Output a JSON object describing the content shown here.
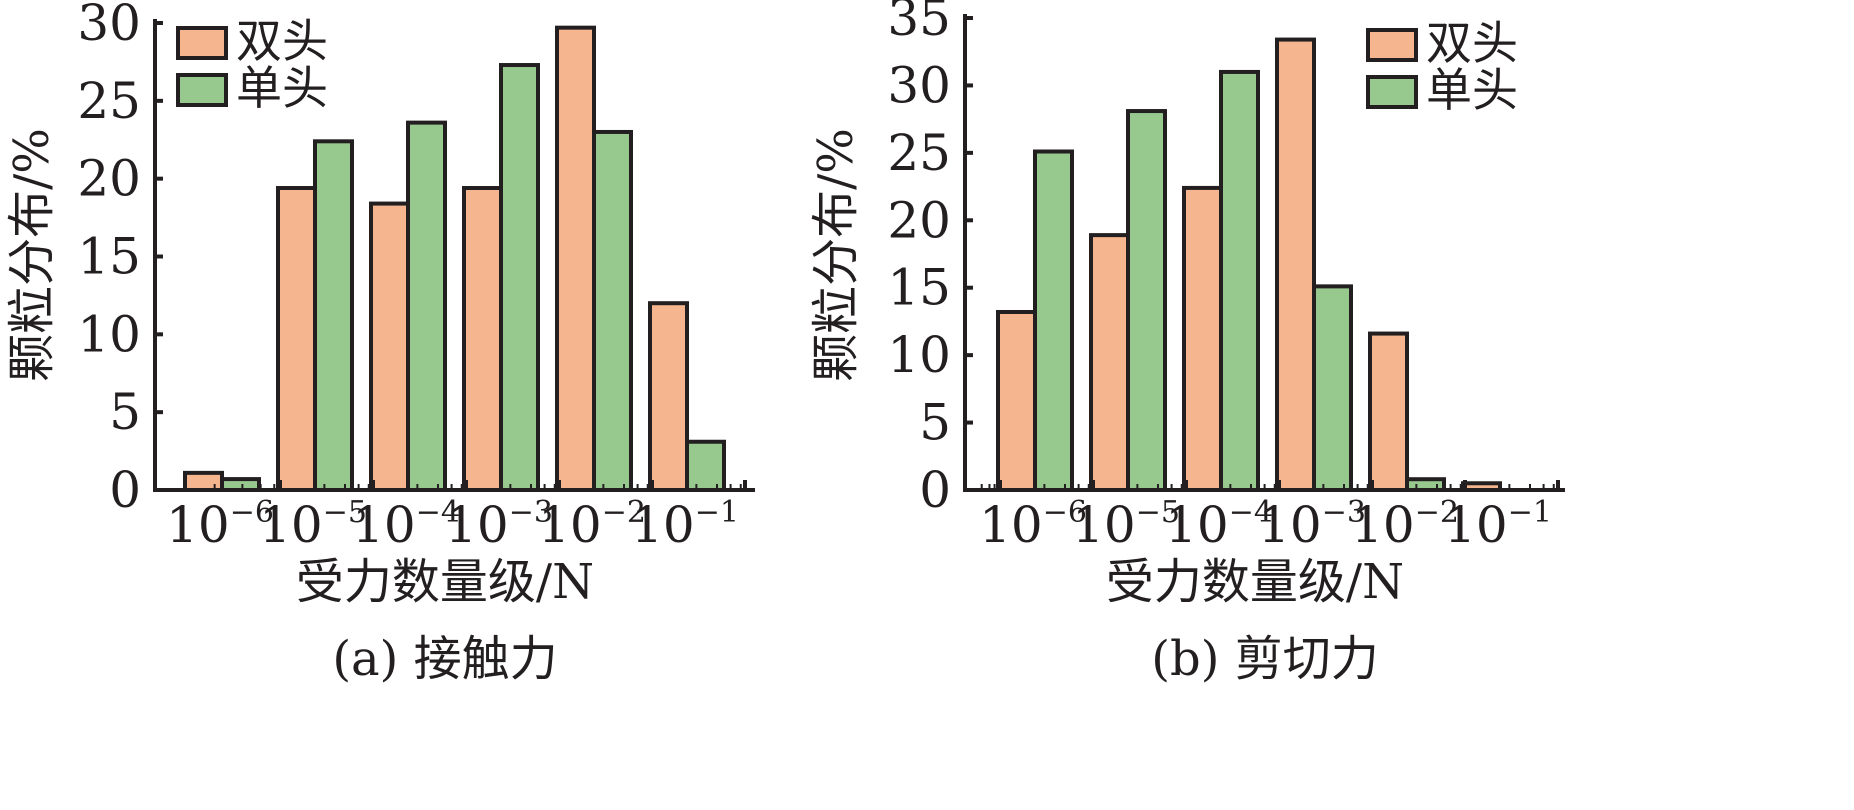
{
  "colors": {
    "double": "#f5b58e",
    "single": "#97c98f",
    "ink": "#231f20"
  },
  "chart_data": [
    {
      "type": "bar",
      "caption": "(a) 接触力",
      "xlabel": "受力数量级/N",
      "ylabel": "颗粒分布/%",
      "ylim": [
        0,
        30
      ],
      "yticks": [
        0,
        5,
        10,
        15,
        20,
        25,
        30
      ],
      "legend_position": "top-left",
      "categories": [
        {
          "base": "10",
          "exp": "−6"
        },
        {
          "base": "10",
          "exp": "−5"
        },
        {
          "base": "10",
          "exp": "−4"
        },
        {
          "base": "10",
          "exp": "−3"
        },
        {
          "base": "10",
          "exp": "−2"
        },
        {
          "base": "10",
          "exp": "−1"
        }
      ],
      "series": [
        {
          "name": "双头",
          "color": "#f5b58e",
          "values": [
            1.1,
            19.4,
            18.4,
            19.4,
            29.7,
            12.0
          ]
        },
        {
          "name": "单头",
          "color": "#97c98f",
          "values": [
            0.7,
            22.4,
            23.6,
            27.3,
            23.0,
            3.1
          ]
        }
      ]
    },
    {
      "type": "bar",
      "caption": "(b) 剪切力",
      "xlabel": "受力数量级/N",
      "ylabel": "颗粒分布/%",
      "ylim": [
        0,
        35
      ],
      "yticks": [
        0,
        5,
        10,
        15,
        20,
        25,
        30,
        35
      ],
      "legend_position": "top-right",
      "categories": [
        {
          "base": "10",
          "exp": "−6"
        },
        {
          "base": "10",
          "exp": "−5"
        },
        {
          "base": "10",
          "exp": "−4"
        },
        {
          "base": "10",
          "exp": "−3"
        },
        {
          "base": "10",
          "exp": "−2"
        },
        {
          "base": "10",
          "exp": "−1"
        }
      ],
      "series": [
        {
          "name": "双头",
          "color": "#f5b58e",
          "values": [
            13.2,
            18.9,
            22.4,
            33.4,
            11.6,
            0.5
          ]
        },
        {
          "name": "单头",
          "color": "#97c98f",
          "values": [
            25.1,
            28.1,
            31.0,
            15.1,
            0.8,
            0
          ]
        }
      ]
    }
  ]
}
